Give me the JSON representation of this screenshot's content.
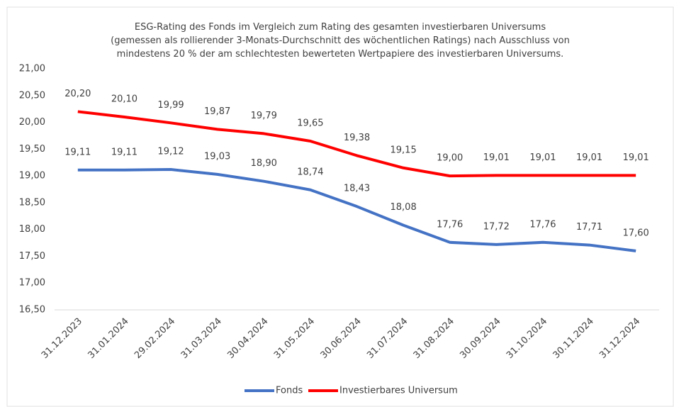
{
  "chart_data": {
    "type": "line",
    "title": "ESG-Rating des Fonds im Vergleich zum Rating des gesamten investierbaren Universums\n(gemessen als rollierender 3-Monats-Durchschnitt des wöchentlichen Ratings) nach Ausschluss von\nmindestens 20 % der am schlechtesten bewerteten Wertpapiere des investierbaren Universums.",
    "categories": [
      "31.12.2023",
      "31.01.2024",
      "29.02.2024",
      "31.03.2024",
      "30.04.2024",
      "31.05.2024",
      "30.06.2024",
      "31.07.2024",
      "31.08.2024",
      "30.09.2024",
      "31.10.2024",
      "30.11.2024",
      "31.12.2024"
    ],
    "series": [
      {
        "name": "Fonds",
        "color": "#4472c4",
        "values": [
          19.11,
          19.11,
          19.12,
          19.03,
          18.9,
          18.74,
          18.43,
          18.08,
          17.76,
          17.72,
          17.76,
          17.71,
          17.6
        ],
        "value_labels": [
          "19,11",
          "19,11",
          "19,12",
          "19,03",
          "18,90",
          "18,74",
          "18,43",
          "18,08",
          "17,76",
          "17,72",
          "17,76",
          "17,71",
          "17,60"
        ]
      },
      {
        "name": "Investierbares Universum",
        "color": "#ff0000",
        "values": [
          20.2,
          20.1,
          19.99,
          19.87,
          19.79,
          19.65,
          19.38,
          19.15,
          19.0,
          19.01,
          19.01,
          19.01,
          19.01
        ],
        "value_labels": [
          "20,20",
          "20,10",
          "19,99",
          "19,87",
          "19,79",
          "19,65",
          "19,38",
          "19,15",
          "19,00",
          "19,01",
          "19,01",
          "19,01",
          "19,01"
        ]
      }
    ],
    "ylim": [
      16.5,
      21
    ],
    "yticks": [
      {
        "value": 16.5,
        "label": "16,50"
      },
      {
        "value": 17,
        "label": "17,00"
      },
      {
        "value": 17.5,
        "label": "17,50"
      },
      {
        "value": 18,
        "label": "18,00"
      },
      {
        "value": 18.5,
        "label": "18,50"
      },
      {
        "value": 19,
        "label": "19,00"
      },
      {
        "value": 19.5,
        "label": "19,50"
      },
      {
        "value": 20,
        "label": "20,00"
      },
      {
        "value": 20.5,
        "label": "20,50"
      },
      {
        "value": 21,
        "label": "21,00"
      }
    ],
    "grid": false,
    "legend": "bottom"
  }
}
